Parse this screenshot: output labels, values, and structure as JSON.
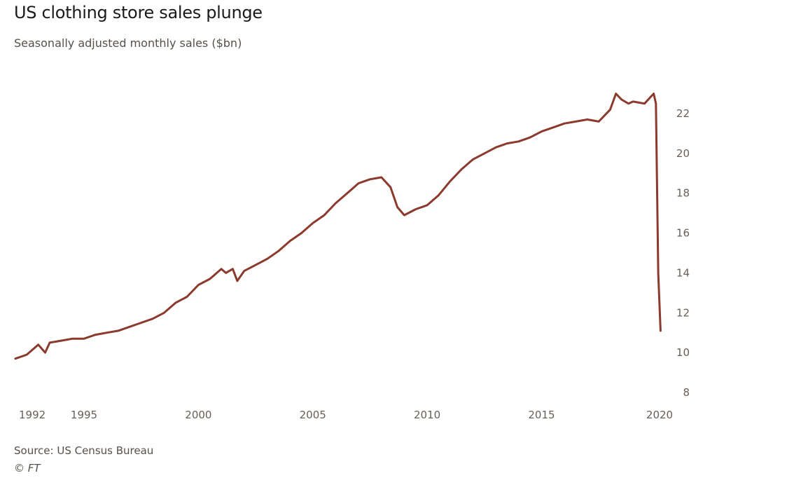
{
  "title": "US clothing store sales plunge",
  "subtitle": "Seasonally adjusted monthly sales ($bn)",
  "source": "Source: US Census Bureau",
  "credit": "© FT",
  "colors": {
    "line": "#8c3a2e",
    "text": "#1a1a1a",
    "muted": "#66605a"
  },
  "chart_data": {
    "type": "line",
    "title": "US clothing store sales plunge",
    "ylabel": "Seasonally adjusted monthly sales ($bn)",
    "xlabel": "",
    "xlim": [
      1992,
      2020.25
    ],
    "ylim": [
      8,
      23
    ],
    "yticks": [
      8,
      10,
      12,
      14,
      16,
      18,
      20,
      22
    ],
    "xticks": [
      1992,
      1995,
      2000,
      2005,
      2010,
      2015,
      2020
    ],
    "grid": false,
    "series": [
      {
        "name": "Clothing store sales",
        "x": [
          1992.0,
          1992.5,
          1993.0,
          1993.3,
          1993.5,
          1994.0,
          1994.5,
          1995.0,
          1995.5,
          1996.0,
          1996.5,
          1997.0,
          1997.5,
          1998.0,
          1998.5,
          1999.0,
          1999.5,
          2000.0,
          2000.5,
          2001.0,
          2001.2,
          2001.5,
          2001.7,
          2002.0,
          2002.5,
          2003.0,
          2003.5,
          2004.0,
          2004.5,
          2005.0,
          2005.5,
          2006.0,
          2006.5,
          2007.0,
          2007.5,
          2008.0,
          2008.4,
          2008.7,
          2009.0,
          2009.5,
          2010.0,
          2010.5,
          2011.0,
          2011.5,
          2012.0,
          2012.5,
          2013.0,
          2013.5,
          2014.0,
          2014.5,
          2015.0,
          2015.5,
          2016.0,
          2016.5,
          2017.0,
          2017.5,
          2018.0,
          2018.25,
          2018.5,
          2018.8,
          2019.0,
          2019.5,
          2019.9,
          2020.0,
          2020.1,
          2020.2
        ],
        "values": [
          9.7,
          9.9,
          10.4,
          10.0,
          10.5,
          10.6,
          10.7,
          10.7,
          10.9,
          11.0,
          11.1,
          11.3,
          11.5,
          11.7,
          12.0,
          12.5,
          12.8,
          13.4,
          13.7,
          14.2,
          14.0,
          14.2,
          13.6,
          14.1,
          14.4,
          14.7,
          15.1,
          15.6,
          16.0,
          16.5,
          16.9,
          17.5,
          18.0,
          18.5,
          18.7,
          18.8,
          18.3,
          17.3,
          16.9,
          17.2,
          17.4,
          17.9,
          18.6,
          19.2,
          19.7,
          20.0,
          20.3,
          20.5,
          20.6,
          20.8,
          21.1,
          21.3,
          21.5,
          21.6,
          21.7,
          21.6,
          22.2,
          23.0,
          22.7,
          22.5,
          22.6,
          22.5,
          23.0,
          22.5,
          14.0,
          11.1
        ]
      }
    ],
    "annotations": []
  }
}
